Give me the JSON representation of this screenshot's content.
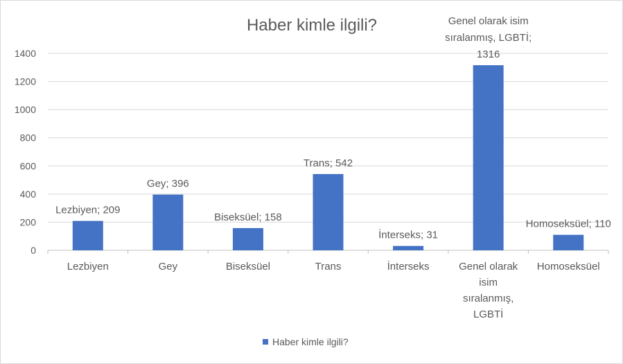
{
  "chart_data": {
    "type": "bar",
    "title": "Haber kimle ilgili?",
    "categories": [
      "Lezbiyen",
      "Gey",
      "Biseksüel",
      "Trans",
      "İnterseks",
      "Genel olarak isim sıralanmış, LGBTİ",
      "Homoseksüel"
    ],
    "category_lines": [
      [
        "Lezbiyen"
      ],
      [
        "Gey"
      ],
      [
        "Biseksüel"
      ],
      [
        "Trans"
      ],
      [
        "İnterseks"
      ],
      [
        "Genel olarak",
        "isim",
        "sıralanmış,",
        "LGBTİ"
      ],
      [
        "Homoseksüel"
      ]
    ],
    "values": [
      209,
      396,
      158,
      542,
      31,
      1316,
      110
    ],
    "data_labels": [
      [
        "Lezbiyen; 209"
      ],
      [
        "Gey; 396"
      ],
      [
        "Biseksüel; 158"
      ],
      [
        "Trans; 542"
      ],
      [
        "İnterseks; 31"
      ],
      [
        "Genel olarak isim",
        "sıralanmış, LGBTİ;",
        "1316"
      ],
      [
        "Homoseksüel; 110"
      ]
    ],
    "series": [
      {
        "name": "Haber kimle ilgili?",
        "values": [
          209,
          396,
          158,
          542,
          31,
          1316,
          110
        ]
      }
    ],
    "yticks": [
      "0",
      "200",
      "400",
      "600",
      "800",
      "1000",
      "1200",
      "1400"
    ],
    "ylim": [
      0,
      1400
    ],
    "xlabel": "",
    "ylabel": "",
    "grid": true,
    "legend": "bottom",
    "colors": {
      "bar": "#4472c4",
      "grid": "#d9d9d9",
      "text": "#595959"
    }
  }
}
